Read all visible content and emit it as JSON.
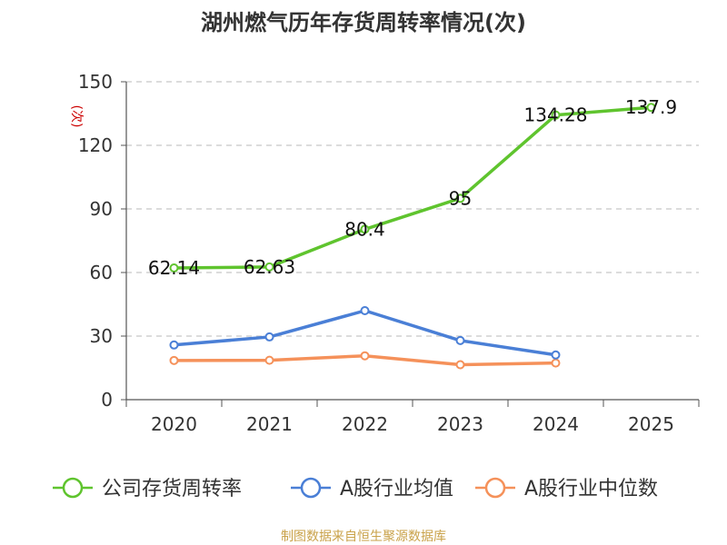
{
  "chart_data": {
    "type": "line",
    "title": "湖州燃气历年存货周转率情况(次)",
    "ylabel": "(次)",
    "xlabel": "",
    "categories": [
      "2020",
      "2021",
      "2022",
      "2023",
      "2024",
      "2025"
    ],
    "ylim": [
      0,
      150
    ],
    "yticks": [
      0,
      30,
      60,
      90,
      120,
      150
    ],
    "grid": true,
    "series": [
      {
        "name": "公司存货周转率",
        "color": "#5fc42e",
        "values": [
          62.14,
          62.63,
          80.4,
          95,
          134.28,
          137.9
        ],
        "labels": [
          "62.14",
          "62.63",
          "80.4",
          "95",
          "134.28",
          "137.9"
        ]
      },
      {
        "name": "A股行业均值",
        "color": "#4a7fd6",
        "values": [
          25.8,
          29.6,
          42.0,
          27.9,
          21.1,
          null
        ]
      },
      {
        "name": "A股行业中位数",
        "color": "#f5915a",
        "values": [
          18.5,
          18.6,
          20.7,
          16.5,
          17.3,
          null
        ]
      }
    ],
    "legend": "bottom",
    "source": "制图数据来自恒生聚源数据库"
  }
}
